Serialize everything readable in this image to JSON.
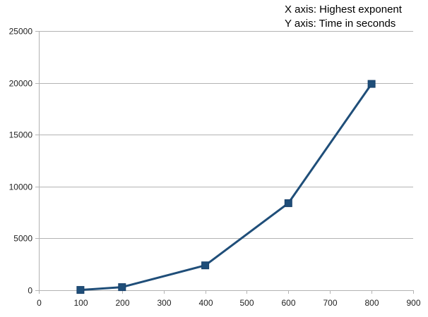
{
  "chart_data": {
    "type": "line",
    "x": [
      100,
      200,
      400,
      600,
      800
    ],
    "series": [
      {
        "values": [
          30,
          300,
          2400,
          8400,
          19900
        ]
      }
    ],
    "xlim": [
      0,
      900
    ],
    "ylim": [
      0,
      25000
    ],
    "x_ticks": [
      0,
      100,
      200,
      300,
      400,
      500,
      600,
      700,
      800,
      900
    ],
    "y_ticks": [
      0,
      5000,
      10000,
      15000,
      20000,
      25000
    ],
    "annotations": [
      "X axis: Highest exponent",
      "Y axis: Time in seconds"
    ],
    "grid": "horizontal",
    "marker": "square",
    "line_color": "#1f4e79"
  }
}
